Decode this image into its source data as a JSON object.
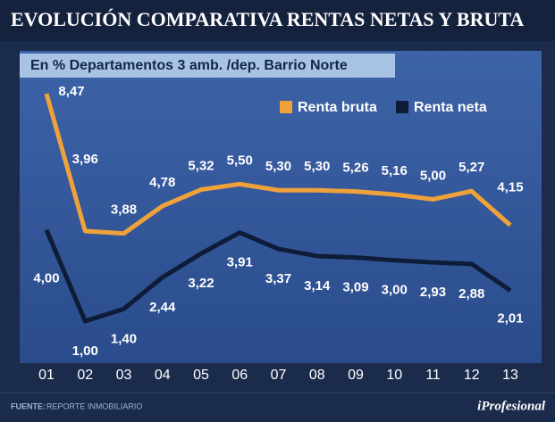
{
  "header": {
    "title": "EVOLUCIÓN COMPARATIVA RENTAS NETAS Y BRUTA"
  },
  "chart_data": {
    "type": "line",
    "subtitle": "En % Departamentos 3 amb. /dep. Barrio Norte",
    "categories": [
      "01",
      "02",
      "03",
      "04",
      "05",
      "06",
      "07",
      "08",
      "09",
      "10",
      "11",
      "12",
      "13"
    ],
    "series": [
      {
        "name": "Renta bruta",
        "color": "#f0a23a",
        "values": [
          8.47,
          3.96,
          3.88,
          4.78,
          5.32,
          5.5,
          5.3,
          5.3,
          5.26,
          5.16,
          5.0,
          5.27,
          4.15
        ],
        "value_labels": [
          "8,47",
          "3,96",
          "3,88",
          "4,78",
          "5,32",
          "5,50",
          "5,30",
          "5,30",
          "5,26",
          "5,16",
          "5,00",
          "5,27",
          "4,15"
        ]
      },
      {
        "name": "Renta neta",
        "color": "#0e1c38",
        "values": [
          4.0,
          1.0,
          1.4,
          2.44,
          3.22,
          3.91,
          3.37,
          3.14,
          3.09,
          3.0,
          2.93,
          2.88,
          2.01
        ],
        "value_labels": [
          "4,00",
          "1,00",
          "1,40",
          "2,44",
          "3,22",
          "3,91",
          "3,37",
          "3,14",
          "3,09",
          "3,00",
          "2,93",
          "2,88",
          "2,01"
        ]
      }
    ]
  },
  "footer": {
    "source_label": "FUENTE:",
    "source": "REPORTE INMOBILIARIO",
    "brand": "iProfesional"
  }
}
